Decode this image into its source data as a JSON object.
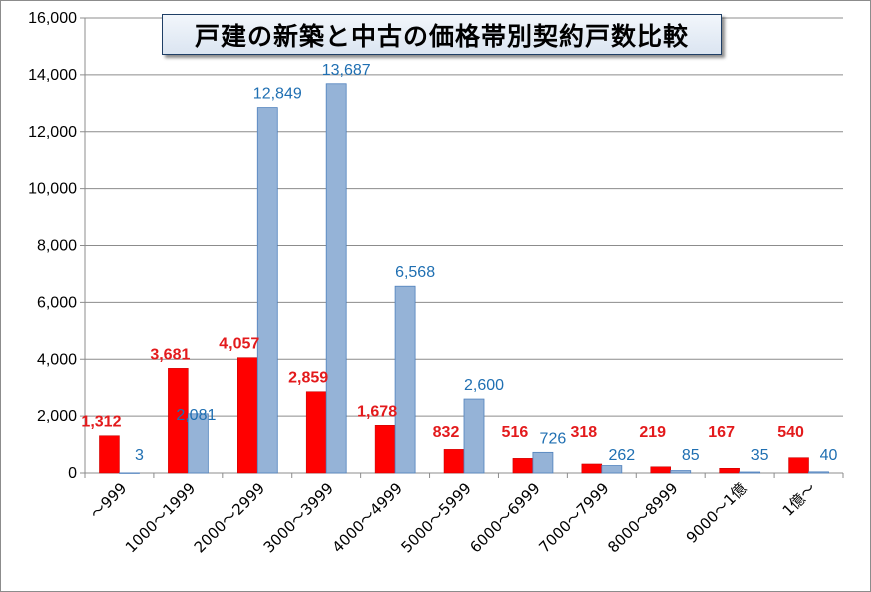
{
  "chart_data": {
    "type": "bar",
    "title": "戸建の新築と中古の価格帯別契約戸数比較",
    "categories": [
      "～999",
      "1000～1999",
      "2000～2999",
      "3000～3999",
      "4000～4999",
      "5000～5999",
      "6000～6999",
      "7000～7999",
      "8000～8999",
      "9000～1億",
      "1億～"
    ],
    "series": [
      {
        "values": [
          1312,
          3681,
          4057,
          2859,
          1678,
          832,
          516,
          318,
          219,
          167,
          540
        ],
        "labels": [
          "1,312",
          "3,681",
          "4,057",
          "2,859",
          "1,678",
          "832",
          "516",
          "318",
          "219",
          "167",
          "540"
        ],
        "color": "#ff0000"
      },
      {
        "values": [
          3,
          2081,
          12849,
          13687,
          6568,
          2600,
          726,
          262,
          85,
          35,
          40
        ],
        "labels": [
          "3",
          "2,081",
          "12,849",
          "13,687",
          "6,568",
          "2,600",
          "726",
          "262",
          "85",
          "35",
          "40"
        ],
        "color": "#95b3d7"
      }
    ],
    "ylim": [
      0,
      16000
    ],
    "yticks": [
      0,
      2000,
      4000,
      6000,
      8000,
      10000,
      12000,
      14000,
      16000
    ],
    "ytick_labels": [
      "0",
      "2,000",
      "4,000",
      "6,000",
      "8,000",
      "10,000",
      "12,000",
      "14,000",
      "16,000"
    ],
    "grid": true,
    "legend": "none"
  }
}
